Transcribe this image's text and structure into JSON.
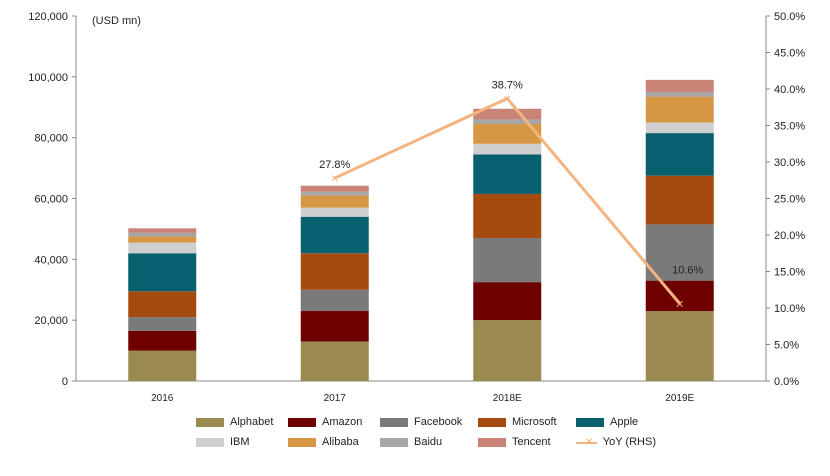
{
  "chart_data": {
    "type": "bar",
    "stacked": true,
    "unit_label": "(USD mn)",
    "categories": [
      "2016",
      "2017",
      "2018E",
      "2019E"
    ],
    "ylim": [
      0,
      120000
    ],
    "y_ticks": [
      "0",
      "20,000",
      "40,000",
      "60,000",
      "80,000",
      "100,000",
      "120,000"
    ],
    "y2lim": [
      0,
      50
    ],
    "y2_ticks": [
      "0.0%",
      "5.0%",
      "10.0%",
      "15.0%",
      "20.0%",
      "25.0%",
      "30.0%",
      "35.0%",
      "40.0%",
      "45.0%",
      "50.0%"
    ],
    "grid": false,
    "legend_position": "bottom",
    "series": [
      {
        "name": "Alphabet",
        "color": "#9b8a50",
        "values": [
          10000,
          13000,
          20000,
          23000
        ]
      },
      {
        "name": "Amazon",
        "color": "#6e0000",
        "values": [
          6500,
          10000,
          12500,
          10000
        ]
      },
      {
        "name": "Facebook",
        "color": "#7a7a7a",
        "values": [
          4500,
          7000,
          14500,
          18500
        ]
      },
      {
        "name": "Microsoft",
        "color": "#a54b10",
        "values": [
          8500,
          12000,
          14500,
          16000
        ]
      },
      {
        "name": "Apple",
        "color": "#08606e",
        "values": [
          12500,
          12000,
          13000,
          14000
        ]
      },
      {
        "name": "IBM",
        "color": "#cfcfcf",
        "values": [
          3500,
          3000,
          3500,
          3500
        ]
      },
      {
        "name": "Alibaba",
        "color": "#d59744",
        "values": [
          2000,
          4000,
          6500,
          8500
        ]
      },
      {
        "name": "Baidu",
        "color": "#a6a6a6",
        "values": [
          1200,
          1200,
          1500,
          1500
        ]
      },
      {
        "name": "Tencent",
        "color": "#c98477",
        "values": [
          1500,
          2000,
          3500,
          4000
        ]
      }
    ],
    "line": {
      "name": "YoY (RHS)",
      "color": "#f4b480",
      "axis": "right",
      "x": [
        "2017",
        "2018E",
        "2019E"
      ],
      "values": [
        27.8,
        38.7,
        10.6
      ],
      "labels": [
        "27.8%",
        "38.7%",
        "10.6%"
      ]
    }
  }
}
